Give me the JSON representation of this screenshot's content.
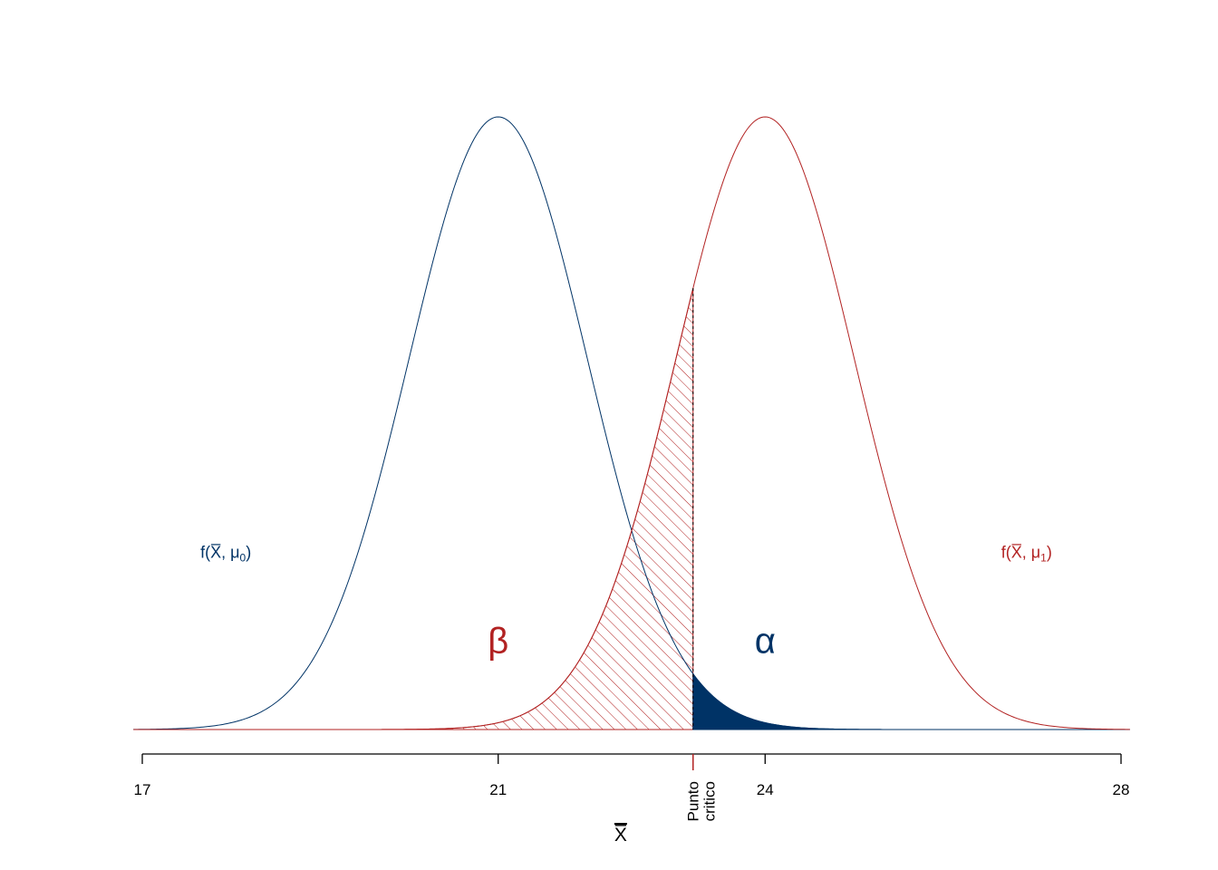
{
  "chart_data": {
    "type": "area",
    "title": "",
    "xlabel": "X̅",
    "ylabel": "",
    "xlim": [
      17,
      28
    ],
    "xticks": [
      {
        "value": 17,
        "label": "17"
      },
      {
        "value": 21,
        "label": "21"
      },
      {
        "value": 24,
        "label": "24"
      },
      {
        "value": 28,
        "label": "28"
      }
    ],
    "critical_point": {
      "value": 23.19,
      "label_line1": "Punto",
      "label_line2": "critico"
    },
    "grid": false,
    "series": [
      {
        "name": "f(X̅, μ0)",
        "label_main": "f(X̅, μ",
        "label_sub": "0",
        "label_close": ")",
        "mean": 21,
        "sd": 1,
        "color": "#003366",
        "label_x": 18.0,
        "label_y_rel": 0.28
      },
      {
        "name": "f(X̅, μ1)",
        "label_main": "f(X̅, μ",
        "label_sub": "1",
        "label_close": ")",
        "mean": 24,
        "sd": 1,
        "color": "#b22222",
        "label_x": 27.0,
        "label_y_rel": 0.28
      }
    ],
    "regions": [
      {
        "name": "beta",
        "symbol": "β",
        "from_series": 1,
        "x_range": [
          17,
          23.19
        ],
        "fill": "hatch",
        "color": "#b22222",
        "label_x": 21.0,
        "label_y_rel": 0.14
      },
      {
        "name": "alpha",
        "symbol": "α",
        "from_series": 0,
        "x_range": [
          23.19,
          28
        ],
        "fill": "solid",
        "color": "#003366",
        "label_x": 24.0,
        "label_y_rel": 0.14
      }
    ]
  }
}
